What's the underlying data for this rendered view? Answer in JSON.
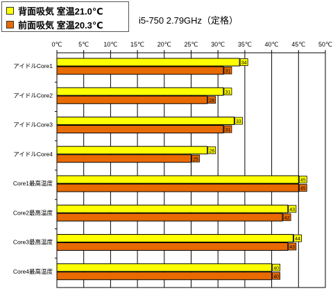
{
  "chart_data": {
    "type": "bar",
    "orientation": "horizontal",
    "subtitle": "i5-750 2.79GHz（定格）",
    "x_unit": "℃",
    "xlim": [
      0,
      50
    ],
    "xticks": [
      "0℃",
      "5℃",
      "10℃",
      "15℃",
      "20℃",
      "25℃",
      "30℃",
      "35℃",
      "40℃",
      "45℃",
      "50℃"
    ],
    "grid": true,
    "legend_position": "top-left",
    "categories": [
      "アイドルCore1",
      "アイドルCore2",
      "アイドルCore3",
      "アイドルCore4",
      "Core1最高温度",
      "Core2最高温度",
      "Core3最高温度",
      "Core4最高温度"
    ],
    "series": [
      {
        "name": "背面吸気  室温21.0℃",
        "color": "#FFFF00",
        "values": [
          34,
          31,
          33,
          28,
          45,
          43,
          44,
          40
        ]
      },
      {
        "name": "前面吸気  室温20.3℃",
        "color": "#E86A00",
        "values": [
          31,
          28,
          31,
          25,
          45,
          42,
          43,
          40
        ]
      }
    ]
  }
}
